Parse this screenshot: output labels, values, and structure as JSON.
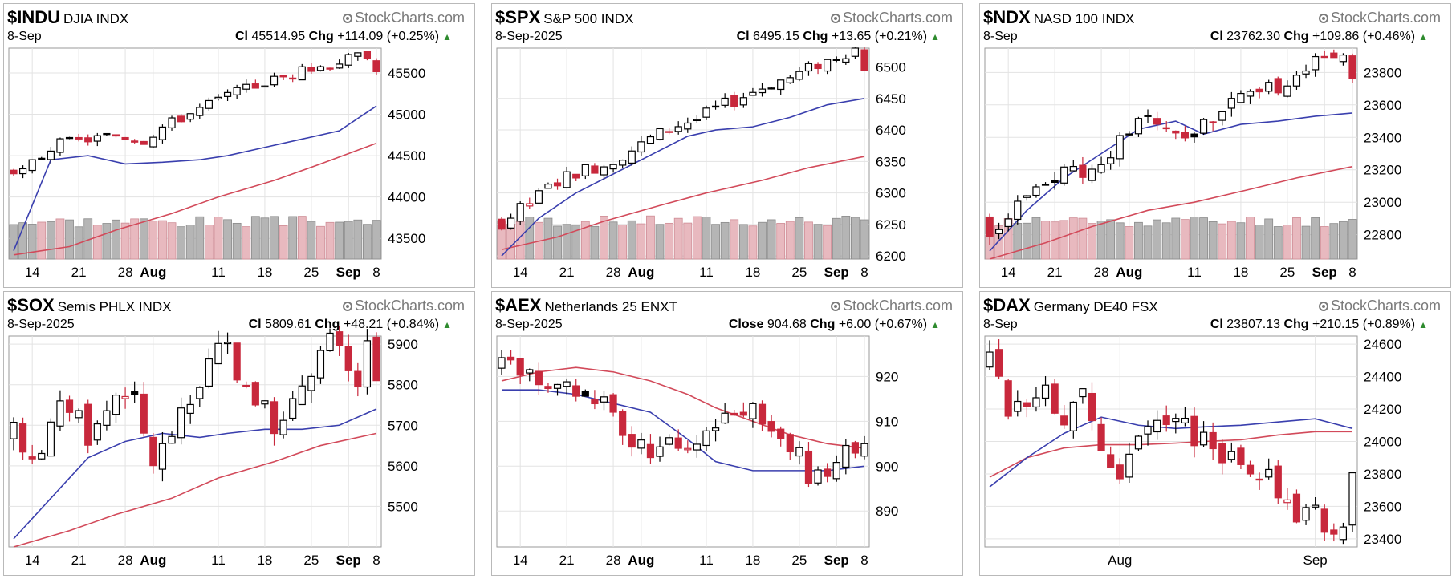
{
  "chart_data": [
    {
      "type": "candlestick",
      "symbol": "$INDU",
      "name": "DJIA",
      "exchange": "INDX",
      "brand": "StockCharts.com",
      "date": "8-Sep",
      "close_label": "Cl",
      "close": "45514.95",
      "chg_label": "Chg",
      "chg": "+114.09 (+0.25%)",
      "y_ticks": [
        43500,
        44000,
        44500,
        45000,
        45500
      ],
      "x_labels": [
        {
          "i": 2,
          "text": "14"
        },
        {
          "i": 7,
          "text": "21"
        },
        {
          "i": 12,
          "text": "28"
        },
        {
          "i": 15,
          "text": "Aug",
          "bold": true
        },
        {
          "i": 22,
          "text": "11"
        },
        {
          "i": 27,
          "text": "18"
        },
        {
          "i": 32,
          "text": "25"
        },
        {
          "i": 36,
          "text": "Sep",
          "bold": true
        },
        {
          "i": 39,
          "text": "8"
        }
      ],
      "ylim": [
        43250,
        45800
      ],
      "start": 44350,
      "end": 45515,
      "path": [
        -0.5,
        -0.25,
        0.0,
        0.25,
        0.5,
        0.6,
        0.55,
        0.5,
        0.45,
        0.4,
        0.35,
        0.3,
        0.1,
        -0.1,
        -0.3,
        -0.1,
        0.1,
        0.2,
        0.3,
        0.4,
        0.5,
        0.6,
        0.7,
        0.75,
        0.8,
        0.85,
        0.9,
        0.92,
        0.95,
        0.96,
        0.97,
        0.975,
        0.98,
        0.985,
        0.99,
        0.993,
        0.996,
        0.998,
        0.999,
        1.0
      ],
      "amp": 500,
      "seed": 3,
      "ma_short": [
        43350,
        44450,
        44500,
        44400,
        44420,
        44450,
        44500,
        44600,
        44700,
        44800,
        45100
      ],
      "ma_long": [
        43300,
        43400,
        43600,
        43800,
        44000,
        44200,
        44400,
        44650
      ]
    },
    {
      "type": "candlestick",
      "symbol": "$SPX",
      "name": "S&P 500",
      "exchange": "INDX",
      "brand": "StockCharts.com",
      "date": "8-Sep-2025",
      "close_label": "Cl",
      "close": "6495.15",
      "chg_label": "Chg",
      "chg": "+13.65 (+0.21%)",
      "y_ticks": [
        6200,
        6250,
        6300,
        6350,
        6400,
        6450,
        6500
      ],
      "x_labels": [
        {
          "i": 2,
          "text": "14"
        },
        {
          "i": 7,
          "text": "21"
        },
        {
          "i": 12,
          "text": "28"
        },
        {
          "i": 15,
          "text": "Aug",
          "bold": true
        },
        {
          "i": 22,
          "text": "11"
        },
        {
          "i": 27,
          "text": "18"
        },
        {
          "i": 32,
          "text": "25"
        },
        {
          "i": 36,
          "text": "Sep",
          "bold": true
        },
        {
          "i": 39,
          "text": "8"
        }
      ],
      "ylim": [
        6195,
        6530
      ],
      "start": 6260,
      "end": 6495,
      "path": [
        -0.2,
        -0.1,
        0.05,
        0.15,
        0.3,
        0.45,
        0.55,
        0.6,
        0.62,
        0.6,
        0.5,
        0.45,
        0.5,
        0.55,
        0.6,
        0.65,
        0.75,
        0.8,
        0.82,
        0.83,
        0.8,
        0.75,
        0.82,
        0.88,
        0.9,
        0.88,
        0.92,
        0.95,
        0.97,
        0.96,
        0.95,
        0.9,
        0.92,
        0.96,
        0.98,
        0.99,
        1.0,
        0.99,
        1.0,
        1.0
      ],
      "amp": 80,
      "seed": 7,
      "ma_short": [
        6200,
        6260,
        6300,
        6330,
        6360,
        6390,
        6400,
        6405,
        6420,
        6440,
        6450
      ],
      "ma_long": [
        6210,
        6230,
        6255,
        6280,
        6300,
        6320,
        6340,
        6358
      ]
    },
    {
      "type": "candlestick",
      "symbol": "$NDX",
      "name": "NASD 100",
      "exchange": "INDX",
      "brand": "StockCharts.com",
      "date": "8-Sep",
      "close_label": "Cl",
      "close": "23762.30",
      "chg_label": "Chg",
      "chg": "+109.86 (+0.46%)",
      "y_ticks": [
        22800,
        23000,
        23200,
        23400,
        23600,
        23800
      ],
      "x_labels": [
        {
          "i": 2,
          "text": "14"
        },
        {
          "i": 7,
          "text": "21"
        },
        {
          "i": 12,
          "text": "28"
        },
        {
          "i": 15,
          "text": "Aug",
          "bold": true
        },
        {
          "i": 22,
          "text": "11"
        },
        {
          "i": 27,
          "text": "18"
        },
        {
          "i": 32,
          "text": "25"
        },
        {
          "i": 36,
          "text": "Sep",
          "bold": true
        },
        {
          "i": 39,
          "text": "8"
        }
      ],
      "ylim": [
        22650,
        23950
      ],
      "start": 22900,
      "end": 23762,
      "path": [
        -0.3,
        -0.2,
        0.0,
        0.1,
        0.2,
        0.3,
        0.4,
        0.5,
        0.45,
        0.3,
        0.2,
        0.35,
        0.5,
        0.6,
        0.75,
        0.9,
        1.0,
        0.95,
        0.8,
        0.7,
        0.5,
        0.3,
        0.2,
        0.4,
        0.5,
        0.6,
        0.7,
        0.65,
        0.5,
        0.45,
        0.55,
        0.6,
        0.7,
        0.75,
        0.8,
        0.78,
        0.82,
        0.9,
        0.95,
        1.0
      ],
      "amp": 450,
      "seed": 11,
      "ma_short": [
        22700,
        22950,
        23150,
        23300,
        23450,
        23500,
        23420,
        23480,
        23500,
        23530,
        23550
      ],
      "ma_long": [
        22650,
        22750,
        22850,
        22950,
        23000,
        23080,
        23150,
        23220
      ]
    },
    {
      "type": "candlestick",
      "symbol": "$SOX",
      "name": "Semis PHLX",
      "exchange": "INDX",
      "brand": "StockCharts.com",
      "date": "8-Sep-2025",
      "close_label": "Cl",
      "close": "5809.61",
      "chg_label": "Chg",
      "chg": "+48.21 (+0.84%)",
      "y_ticks": [
        5500,
        5600,
        5700,
        5800,
        5900
      ],
      "x_labels": [
        {
          "i": 2,
          "text": "14"
        },
        {
          "i": 7,
          "text": "21"
        },
        {
          "i": 12,
          "text": "28"
        },
        {
          "i": 15,
          "text": "Aug",
          "bold": true
        },
        {
          "i": 22,
          "text": "11"
        },
        {
          "i": 27,
          "text": "18"
        },
        {
          "i": 32,
          "text": "25"
        },
        {
          "i": 36,
          "text": "Sep",
          "bold": true
        },
        {
          "i": 39,
          "text": "8"
        }
      ],
      "ylim": [
        5400,
        5920
      ],
      "start": 5680,
      "end": 5810,
      "path": [
        0.0,
        -0.2,
        -0.4,
        -0.3,
        0.0,
        0.3,
        0.4,
        0.2,
        -0.2,
        -0.1,
        0.2,
        0.5,
        0.6,
        0.2,
        -0.4,
        -0.9,
        -0.7,
        -0.4,
        -0.2,
        0.1,
        0.5,
        0.8,
        1.0,
        0.9,
        0.6,
        0.3,
        0.0,
        -0.3,
        -0.5,
        -0.6,
        -0.3,
        0.2,
        0.5,
        0.7,
        0.85,
        0.6,
        0.2,
        0.0,
        0.6,
        1.0
      ],
      "amp": 260,
      "seed": 17,
      "ma_short": [
        5420,
        5520,
        5620,
        5660,
        5680,
        5670,
        5680,
        5690,
        5690,
        5700,
        5740
      ],
      "ma_long": [
        5400,
        5440,
        5480,
        5520,
        5570,
        5610,
        5650,
        5680
      ]
    },
    {
      "type": "candlestick",
      "symbol": "$AEX",
      "name": "Netherlands 25",
      "exchange": "ENXT",
      "brand": "StockCharts.com",
      "date": "8-Sep-2025",
      "close_label": "Close",
      "close": "904.68",
      "chg_label": "Chg",
      "chg": "+6.00 (+0.67%)",
      "y_ticks": [
        890,
        900,
        910,
        920
      ],
      "x_labels": [
        {
          "i": 2,
          "text": "14"
        },
        {
          "i": 7,
          "text": "21"
        },
        {
          "i": 12,
          "text": "28"
        },
        {
          "i": 15,
          "text": "Aug",
          "bold": true
        },
        {
          "i": 22,
          "text": "11"
        },
        {
          "i": 27,
          "text": "18"
        },
        {
          "i": 32,
          "text": "25"
        },
        {
          "i": 36,
          "text": "Sep",
          "bold": true
        },
        {
          "i": 39,
          "text": "8"
        }
      ],
      "ylim": [
        882,
        929
      ],
      "start": 921,
      "end": 905,
      "path": [
        0.1,
        0.3,
        0.2,
        0.0,
        -0.3,
        -0.4,
        -0.2,
        -0.1,
        -0.3,
        -0.2,
        -0.1,
        -0.3,
        -0.5,
        -0.8,
        -1.0,
        -1.1,
        -1.1,
        -1.0,
        -0.9,
        -0.85,
        -0.8,
        -0.6,
        -0.4,
        -0.2,
        0.0,
        0.2,
        0.3,
        0.25,
        0.1,
        -0.1,
        -0.2,
        -0.4,
        -0.6,
        -0.9,
        -1.0,
        -0.8,
        -0.5,
        -0.3,
        -0.1,
        0.0
      ],
      "amp": 20,
      "seed": 23,
      "ma_short": [
        917,
        917,
        916,
        914,
        912,
        906,
        901,
        899,
        899,
        899,
        900
      ],
      "ma_long": [
        919,
        921,
        922,
        921,
        919,
        916,
        913,
        910,
        907,
        905,
        904
      ]
    },
    {
      "type": "candlestick",
      "symbol": "$DAX",
      "name": "Germany DE40",
      "exchange": "FSX",
      "brand": "StockCharts.com",
      "date": "8-Sep",
      "close_label": "Cl",
      "close": "23807.13",
      "chg_label": "Chg",
      "chg": "+210.15 (+0.89%)",
      "y_ticks": [
        23400,
        23600,
        23800,
        24000,
        24200,
        24400,
        24600
      ],
      "x_labels": [
        {
          "i": 14,
          "text": "Aug"
        },
        {
          "i": 35,
          "text": "Sep"
        }
      ],
      "ylim": [
        23350,
        24650
      ],
      "start": 24450,
      "end": 23807,
      "path": [
        0.1,
        -0.3,
        -0.6,
        -0.5,
        -0.3,
        -0.1,
        0.0,
        -0.3,
        -0.6,
        -0.2,
        0.0,
        -0.4,
        -0.9,
        -1.4,
        -1.2,
        -0.9,
        -0.6,
        -0.4,
        -0.2,
        0.0,
        0.1,
        0.0,
        -0.2,
        -0.1,
        -0.15,
        -0.3,
        -0.5,
        -0.55,
        -0.6,
        -0.5,
        -0.6,
        -0.8,
        -1.1,
        -1.3,
        -1.2,
        -1.0,
        -1.2,
        -1.25,
        -1.15,
        -1.05
      ],
      "amp": 620,
      "seed": 29,
      "ma_short": [
        23720,
        23900,
        24050,
        24150,
        24100,
        24080,
        24090,
        24100,
        24120,
        24140,
        24080
      ],
      "ma_long": [
        23780,
        23900,
        23960,
        23980,
        23980,
        23990,
        24000,
        24010,
        24040,
        24060,
        24060
      ]
    }
  ]
}
